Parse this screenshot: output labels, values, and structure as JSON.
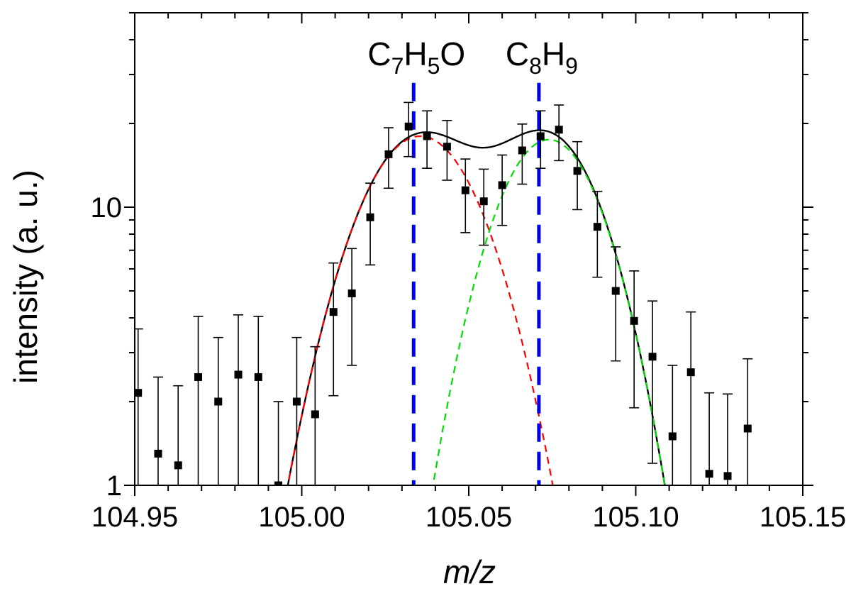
{
  "chart_data": {
    "type": "scatter",
    "xlabel": "m/z",
    "ylabel": "intensity (a. u.)",
    "xlim": [
      104.95,
      105.15
    ],
    "ylim": [
      1,
      50
    ],
    "yscale": "log",
    "x_ticks": [
      "104.95",
      "105.00",
      "105.05",
      "105.10",
      "105.15"
    ],
    "y_ticks": [
      "1",
      "10"
    ],
    "grid": false,
    "legend": "none",
    "annotations": [
      {
        "id": "c7h5o",
        "base1": "C",
        "sub1": "7",
        "base2": "H",
        "sub2": "5",
        "base3": "O",
        "x": 105.0335
      },
      {
        "id": "c8h9",
        "base1": "C",
        "sub1": "8",
        "base2": "H",
        "sub2": "9",
        "base3": "",
        "x": 105.071
      }
    ],
    "points": {
      "x": [
        104.951,
        104.957,
        104.963,
        104.969,
        104.975,
        104.981,
        104.987,
        104.993,
        104.9985,
        105.004,
        105.0095,
        105.015,
        105.0205,
        105.026,
        105.032,
        105.0375,
        105.0435,
        105.049,
        105.0545,
        105.06,
        105.066,
        105.0715,
        105.077,
        105.0825,
        105.0885,
        105.094,
        105.0995,
        105.105,
        105.111,
        105.1165,
        105.122,
        105.1275,
        105.1335
      ],
      "y": [
        2.15,
        1.3,
        1.18,
        2.45,
        2.0,
        2.5,
        2.45,
        1.0,
        2.0,
        1.8,
        4.2,
        4.9,
        9.2,
        15.5,
        19.5,
        18.0,
        16.5,
        11.5,
        10.5,
        12.0,
        16.0,
        18.0,
        19.0,
        13.5,
        8.5,
        5.0,
        3.9,
        2.9,
        1.5,
        2.55,
        1.1,
        1.08,
        1.6
      ],
      "y_err": [
        1.5,
        1.15,
        1.1,
        1.6,
        1.4,
        1.6,
        1.6,
        1.0,
        1.4,
        1.35,
        2.1,
        2.2,
        3.0,
        3.8,
        4.3,
        4.2,
        4.0,
        3.4,
        3.2,
        3.4,
        3.9,
        4.2,
        4.3,
        3.7,
        2.9,
        2.2,
        2.0,
        1.7,
        1.2,
        1.65,
        1.05,
        1.05,
        1.25
      ]
    },
    "fit_curves": [
      {
        "id": "total-fit",
        "style": "solid",
        "color": "#000000",
        "components": [
          0,
          1
        ]
      },
      {
        "id": "component-c7h5o",
        "style": "dashed",
        "color": "#ff0000",
        "components": [
          0
        ]
      },
      {
        "id": "component-c8h9",
        "style": "dashed",
        "color": "#00dd00",
        "components": [
          1
        ]
      }
    ],
    "gaussians": [
      {
        "amplitude": 18.0,
        "center": 105.0355,
        "sigma": 0.0165
      },
      {
        "amplitude": 17.5,
        "center": 105.074,
        "sigma": 0.0145
      }
    ],
    "reference_lines": [
      {
        "id": "c7h5o-line",
        "x": 105.0335,
        "y_top": 28,
        "color": "#0000ee"
      },
      {
        "id": "c8h9-line",
        "x": 105.071,
        "y_top": 28,
        "color": "#0000ee"
      }
    ]
  }
}
